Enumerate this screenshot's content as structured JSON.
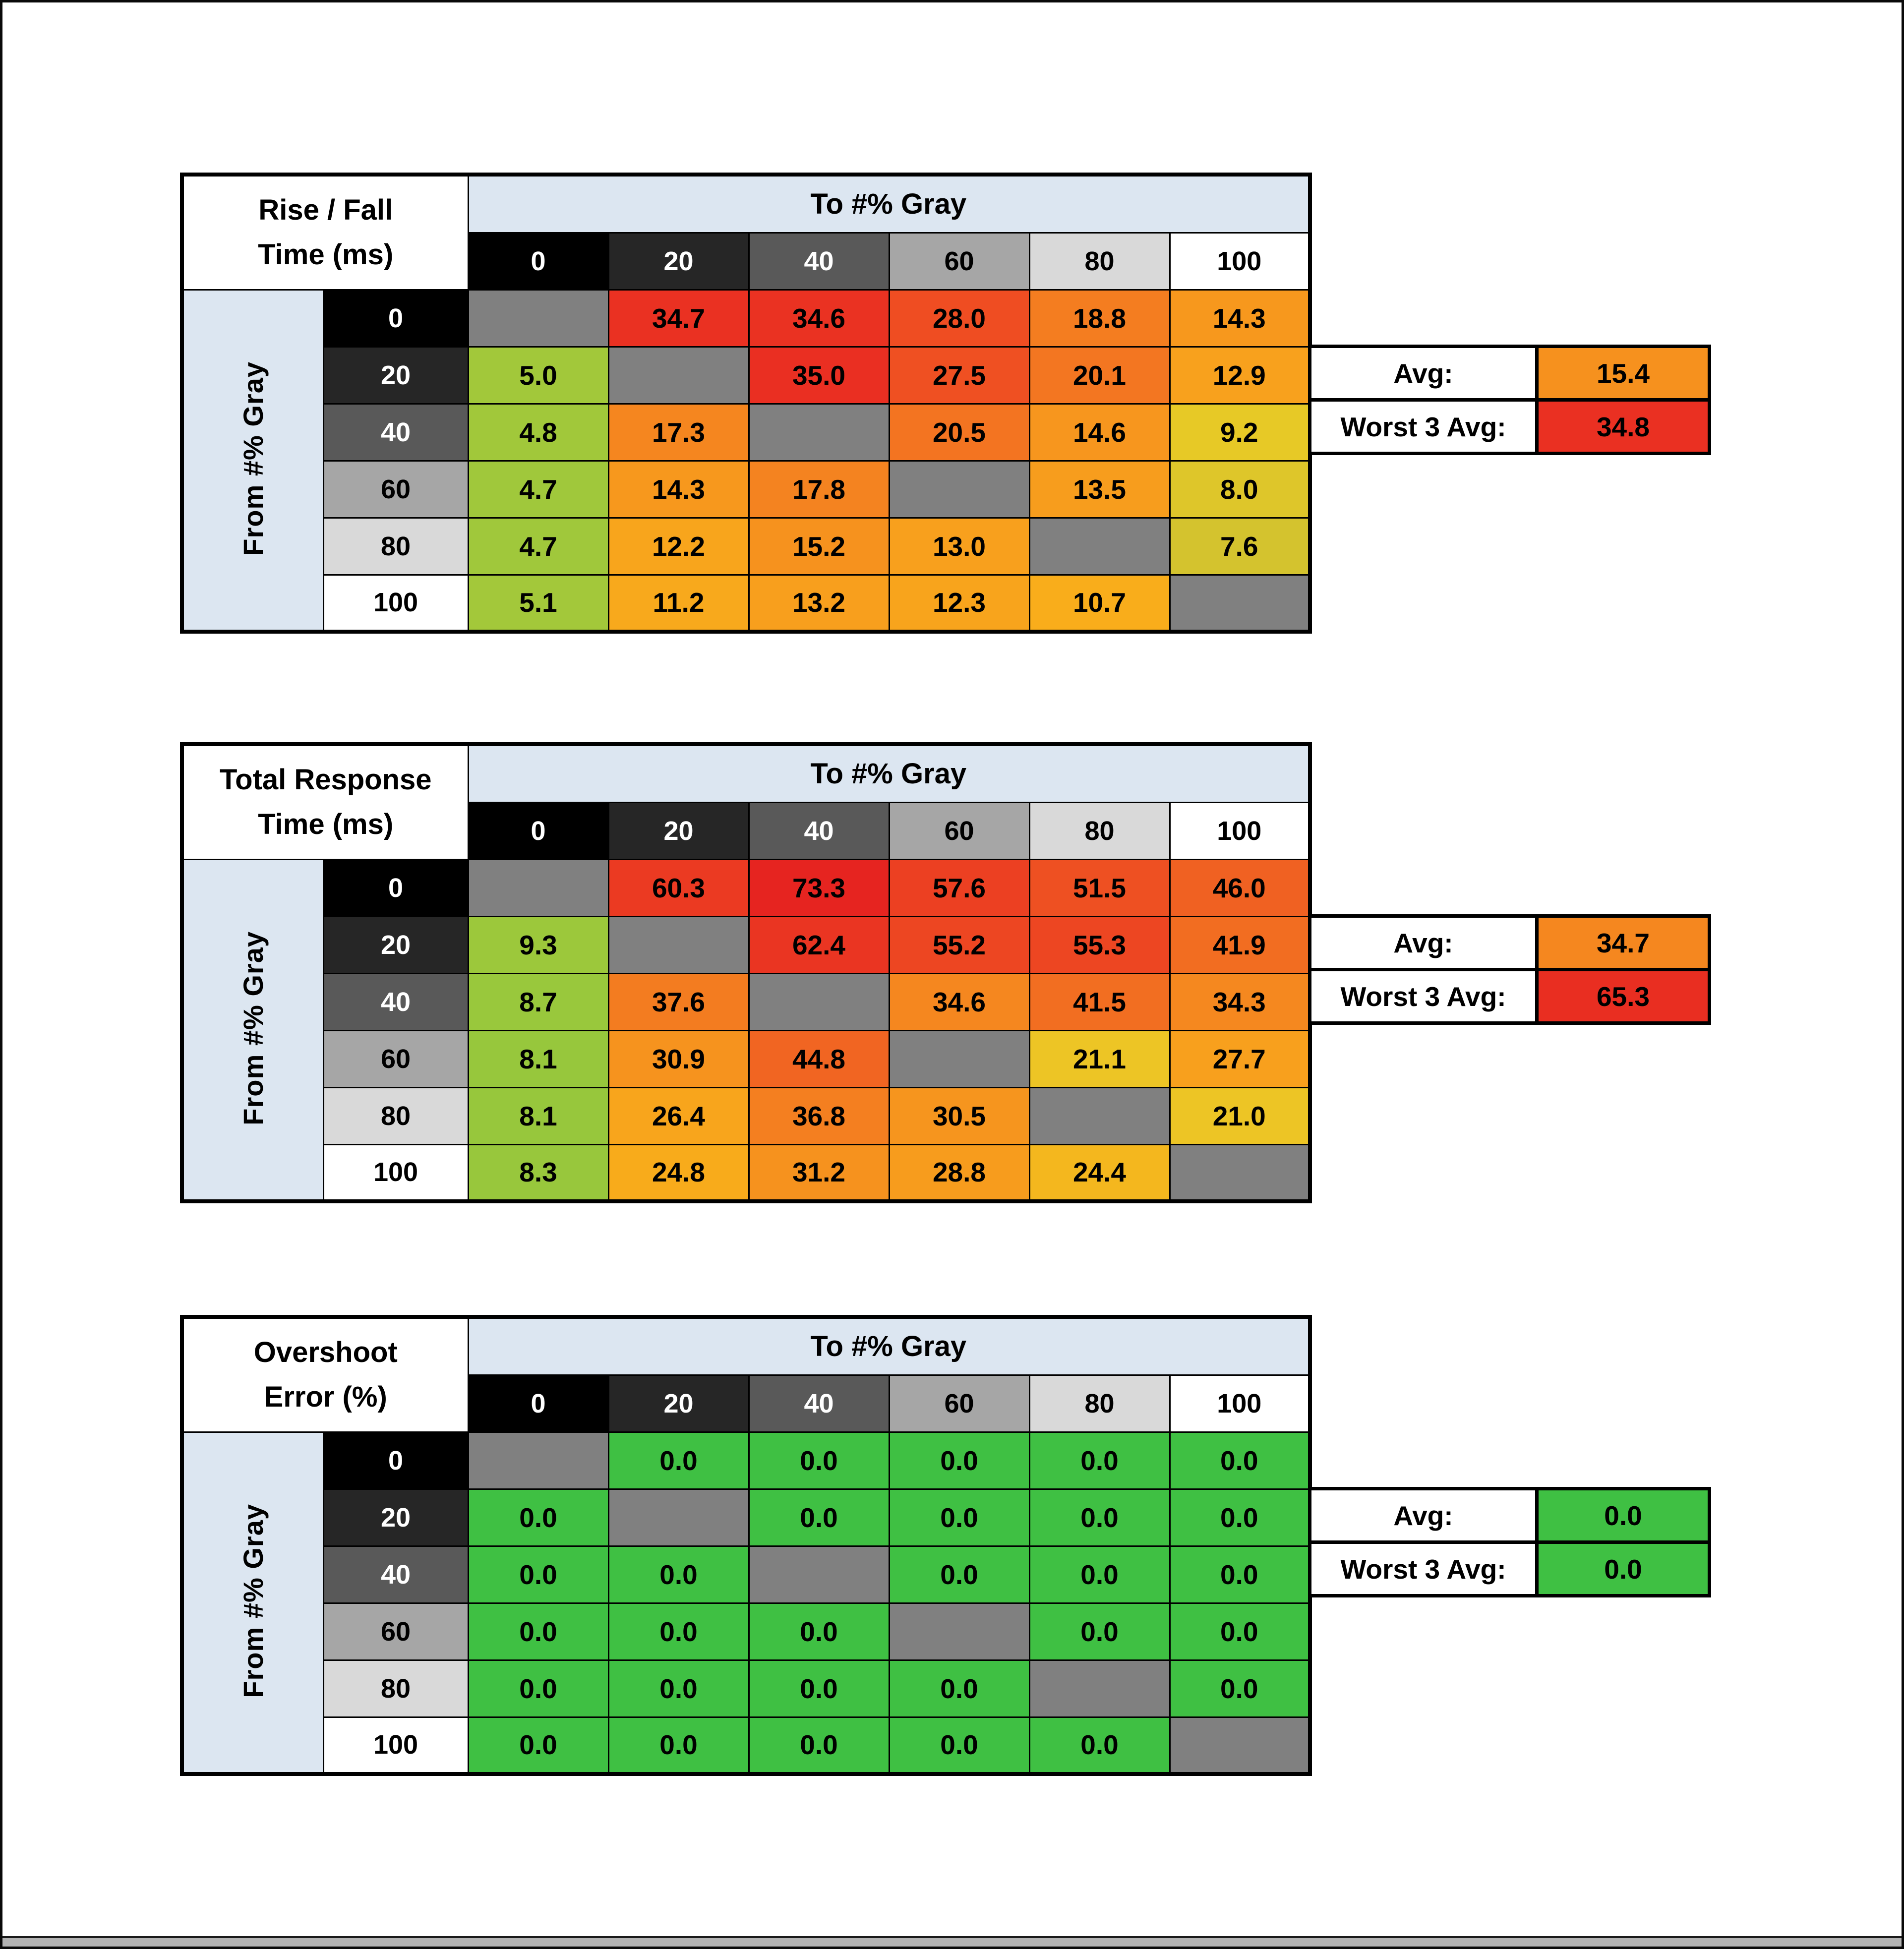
{
  "page": {
    "background": "#ffffff",
    "frame_color": "#0a0a0a"
  },
  "style": {
    "band_blue": "#dce6f1",
    "diagonal_gray": "#808080",
    "grayscale_headers": [
      "#000000",
      "#262626",
      "#595959",
      "#a6a6a6",
      "#d9d9d9",
      "#ffffff"
    ],
    "grayscale_header_text": [
      "#ffffff",
      "#ffffff",
      "#ffffff",
      "#000000",
      "#000000",
      "#000000"
    ]
  },
  "chart_data": [
    {
      "type": "heatmap",
      "title": "Rise / Fall Time (ms)",
      "title_lines": [
        "Rise / Fall",
        "Time (ms)"
      ],
      "columns_axis_label": "To #% Gray",
      "rows_axis_label": "From #% Gray",
      "column_headers": [
        "0",
        "20",
        "40",
        "60",
        "80",
        "100"
      ],
      "row_headers": [
        "0",
        "20",
        "40",
        "60",
        "80",
        "100"
      ],
      "unit": "ms",
      "cells": [
        [
          null,
          {
            "v": "34.7",
            "c": "#ea3122"
          },
          {
            "v": "34.6",
            "c": "#ea3222"
          },
          {
            "v": "28.0",
            "c": "#ef4d22"
          },
          {
            "v": "18.8",
            "c": "#f47d20"
          },
          {
            "v": "14.3",
            "c": "#f7981d"
          }
        ],
        [
          {
            "v": "5.0",
            "c": "#a2c83a"
          },
          null,
          {
            "v": "35.0",
            "c": "#ea2f22"
          },
          {
            "v": "27.5",
            "c": "#ef5022"
          },
          {
            "v": "20.1",
            "c": "#f37621"
          },
          {
            "v": "12.9",
            "c": "#f8a11d"
          }
        ],
        [
          {
            "v": "4.8",
            "c": "#a1c83a"
          },
          {
            "v": "17.3",
            "c": "#f5861f"
          },
          null,
          {
            "v": "20.5",
            "c": "#f37421"
          },
          {
            "v": "14.6",
            "c": "#f7961e"
          },
          {
            "v": "9.2",
            "c": "#e7c926"
          }
        ],
        [
          {
            "v": "4.7",
            "c": "#a0c83b"
          },
          {
            "v": "14.3",
            "c": "#f7981d"
          },
          {
            "v": "17.8",
            "c": "#f48320"
          },
          null,
          {
            "v": "13.5",
            "c": "#f79d1d"
          },
          {
            "v": "8.0",
            "c": "#dec62a"
          }
        ],
        [
          {
            "v": "4.7",
            "c": "#a0c83b"
          },
          {
            "v": "12.2",
            "c": "#f8a51c"
          },
          {
            "v": "15.2",
            "c": "#f6921e"
          },
          {
            "v": "13.0",
            "c": "#f8a01d"
          },
          null,
          {
            "v": "7.6",
            "c": "#d4c32e"
          }
        ],
        [
          {
            "v": "5.1",
            "c": "#a3c83a"
          },
          {
            "v": "11.2",
            "c": "#f8a91c"
          },
          {
            "v": "13.2",
            "c": "#f89f1d"
          },
          {
            "v": "12.3",
            "c": "#f8a41c"
          },
          {
            "v": "10.7",
            "c": "#f9ad1b"
          },
          null
        ]
      ],
      "summary": {
        "avg_label": "Avg:",
        "avg_value": "15.4",
        "avg_color": "#f6911e",
        "worst_label": "Worst 3 Avg:",
        "worst_value": "34.8",
        "worst_color": "#ea3022"
      }
    },
    {
      "type": "heatmap",
      "title": "Total Response Time (ms)",
      "title_lines": [
        "Total Response",
        "Time (ms)"
      ],
      "columns_axis_label": "To #% Gray",
      "rows_axis_label": "From #% Gray",
      "column_headers": [
        "0",
        "20",
        "40",
        "60",
        "80",
        "100"
      ],
      "row_headers": [
        "0",
        "20",
        "40",
        "60",
        "80",
        "100"
      ],
      "unit": "ms",
      "cells": [
        [
          null,
          {
            "v": "60.3",
            "c": "#eb3a22"
          },
          {
            "v": "73.3",
            "c": "#e62420"
          },
          {
            "v": "57.6",
            "c": "#ec4022"
          },
          {
            "v": "51.5",
            "c": "#ee5022"
          },
          {
            "v": "46.0",
            "c": "#f06122"
          }
        ],
        [
          {
            "v": "9.3",
            "c": "#9cc83b"
          },
          null,
          {
            "v": "62.4",
            "c": "#ea3522"
          },
          {
            "v": "55.2",
            "c": "#ed4622"
          },
          {
            "v": "55.3",
            "c": "#ed4622"
          },
          {
            "v": "41.9",
            "c": "#f26d21"
          }
        ],
        [
          {
            "v": "8.7",
            "c": "#99c83c"
          },
          {
            "v": "37.6",
            "c": "#f37c20"
          },
          null,
          {
            "v": "34.6",
            "c": "#f5871f"
          },
          {
            "v": "41.5",
            "c": "#f26e21"
          },
          {
            "v": "34.3",
            "c": "#f5881f"
          }
        ],
        [
          {
            "v": "8.1",
            "c": "#97c73c"
          },
          {
            "v": "30.9",
            "c": "#f6931e"
          },
          {
            "v": "44.8",
            "c": "#f16522"
          },
          null,
          {
            "v": "21.1",
            "c": "#edc525"
          },
          {
            "v": "27.7",
            "c": "#f8a01d"
          }
        ],
        [
          {
            "v": "8.1",
            "c": "#97c73c"
          },
          {
            "v": "26.4",
            "c": "#f8a51c"
          },
          {
            "v": "36.8",
            "c": "#f47f20"
          },
          {
            "v": "30.5",
            "c": "#f6951e"
          },
          null,
          {
            "v": "21.0",
            "c": "#edc525"
          }
        ],
        [
          {
            "v": "8.3",
            "c": "#98c73c"
          },
          {
            "v": "24.8",
            "c": "#f8ab1b"
          },
          {
            "v": "31.2",
            "c": "#f6921e"
          },
          {
            "v": "28.8",
            "c": "#f79c1d"
          },
          {
            "v": "24.4",
            "c": "#f4b71e"
          },
          null
        ]
      ],
      "summary": {
        "avg_label": "Avg:",
        "avg_value": "34.7",
        "avg_color": "#f5871f",
        "worst_label": "Worst 3 Avg:",
        "worst_value": "65.3",
        "worst_color": "#e92e21"
      }
    },
    {
      "type": "heatmap",
      "title": "Overshoot Error (%)",
      "title_lines": [
        "Overshoot",
        "Error (%)"
      ],
      "columns_axis_label": "To #% Gray",
      "rows_axis_label": "From #% Gray",
      "column_headers": [
        "0",
        "20",
        "40",
        "60",
        "80",
        "100"
      ],
      "row_headers": [
        "0",
        "20",
        "40",
        "60",
        "80",
        "100"
      ],
      "unit": "%",
      "cells": [
        [
          null,
          {
            "v": "0.0",
            "c": "#3fc043"
          },
          {
            "v": "0.0",
            "c": "#3fc043"
          },
          {
            "v": "0.0",
            "c": "#3fc043"
          },
          {
            "v": "0.0",
            "c": "#3fc043"
          },
          {
            "v": "0.0",
            "c": "#3fc043"
          }
        ],
        [
          {
            "v": "0.0",
            "c": "#3fc043"
          },
          null,
          {
            "v": "0.0",
            "c": "#3fc043"
          },
          {
            "v": "0.0",
            "c": "#3fc043"
          },
          {
            "v": "0.0",
            "c": "#3fc043"
          },
          {
            "v": "0.0",
            "c": "#3fc043"
          }
        ],
        [
          {
            "v": "0.0",
            "c": "#3fc043"
          },
          {
            "v": "0.0",
            "c": "#3fc043"
          },
          null,
          {
            "v": "0.0",
            "c": "#3fc043"
          },
          {
            "v": "0.0",
            "c": "#3fc043"
          },
          {
            "v": "0.0",
            "c": "#3fc043"
          }
        ],
        [
          {
            "v": "0.0",
            "c": "#3fc043"
          },
          {
            "v": "0.0",
            "c": "#3fc043"
          },
          {
            "v": "0.0",
            "c": "#3fc043"
          },
          null,
          {
            "v": "0.0",
            "c": "#3fc043"
          },
          {
            "v": "0.0",
            "c": "#3fc043"
          }
        ],
        [
          {
            "v": "0.0",
            "c": "#3fc043"
          },
          {
            "v": "0.0",
            "c": "#3fc043"
          },
          {
            "v": "0.0",
            "c": "#3fc043"
          },
          {
            "v": "0.0",
            "c": "#3fc043"
          },
          null,
          {
            "v": "0.0",
            "c": "#3fc043"
          }
        ],
        [
          {
            "v": "0.0",
            "c": "#3fc043"
          },
          {
            "v": "0.0",
            "c": "#3fc043"
          },
          {
            "v": "0.0",
            "c": "#3fc043"
          },
          {
            "v": "0.0",
            "c": "#3fc043"
          },
          {
            "v": "0.0",
            "c": "#3fc043"
          },
          null
        ]
      ],
      "summary": {
        "avg_label": "Avg:",
        "avg_value": "0.0",
        "avg_color": "#3fc043",
        "worst_label": "Worst 3 Avg:",
        "worst_value": "0.0",
        "worst_color": "#3fc043"
      }
    }
  ]
}
